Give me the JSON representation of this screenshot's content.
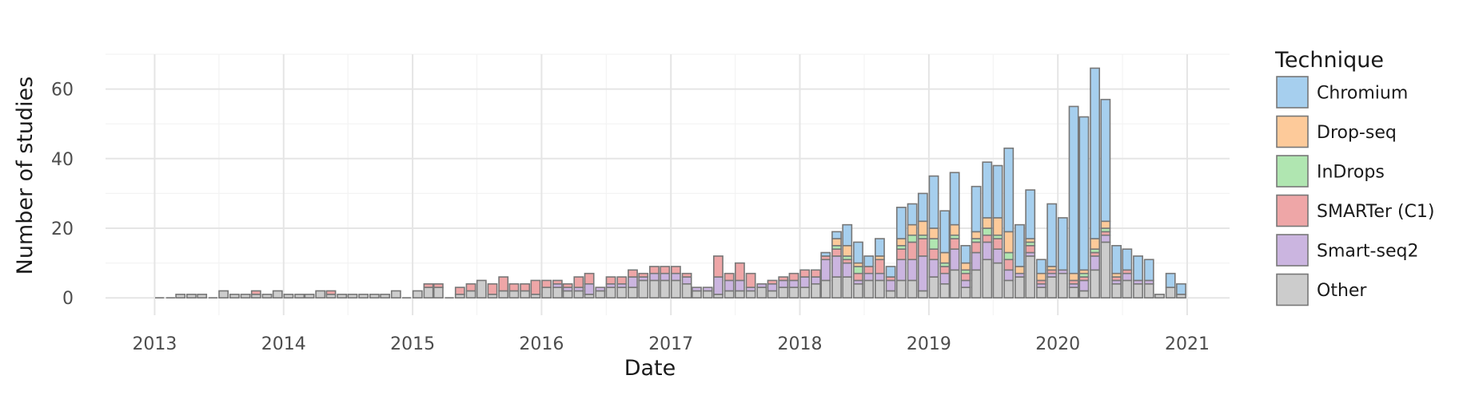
{
  "chart_data": {
    "type": "bar",
    "stacked": true,
    "xlabel": "Date",
    "ylabel": "Number of studies",
    "legend_title": "Technique",
    "legend_position": "right",
    "grid": true,
    "x_ticks": [
      "2013",
      "2014",
      "2015",
      "2016",
      "2017",
      "2018",
      "2019",
      "2020",
      "2021"
    ],
    "y_ticks": [
      "0",
      "20",
      "40",
      "60"
    ],
    "ylim": [
      -5,
      70
    ],
    "xlim": [
      "2012-08-15",
      "2021-05-01"
    ],
    "colors": {
      "Chromium": "#a6cfee",
      "Drop-seq": "#fdca9a",
      "InDrops": "#b0e6b1",
      "SMARTer (C1)": "#eea6a7",
      "Smart-seq2": "#cbb5e0",
      "Other": "#cccccc",
      "bar_edge": "#777777",
      "grid": "#e5e5e5",
      "grid_minor": "#f3f3f3"
    },
    "series_order": [
      "Other",
      "Smart-seq2",
      "SMARTer (C1)",
      "InDrops",
      "Drop-seq",
      "Chromium"
    ],
    "legend": [
      "Chromium",
      "Drop-seq",
      "InDrops",
      "SMARTer (C1)",
      "Smart-seq2",
      "Other"
    ],
    "months": [
      "2013-01",
      "2013-02",
      "2013-03",
      "2013-04",
      "2013-05",
      "2013-06",
      "2013-07",
      "2013-08",
      "2013-09",
      "2013-10",
      "2013-11",
      "2013-12",
      "2014-01",
      "2014-02",
      "2014-03",
      "2014-04",
      "2014-05",
      "2014-06",
      "2014-07",
      "2014-08",
      "2014-09",
      "2014-10",
      "2014-11",
      "2014-12",
      "2015-01",
      "2015-02",
      "2015-03",
      "2015-04",
      "2015-05",
      "2015-06",
      "2015-07",
      "2015-08",
      "2015-09",
      "2015-10",
      "2015-11",
      "2015-12",
      "2016-01",
      "2016-02",
      "2016-03",
      "2016-04",
      "2016-05",
      "2016-06",
      "2016-07",
      "2016-08",
      "2016-09",
      "2016-10",
      "2016-11",
      "2016-12",
      "2017-01",
      "2017-02",
      "2017-03",
      "2017-04",
      "2017-05",
      "2017-06",
      "2017-07",
      "2017-08",
      "2017-09",
      "2017-10",
      "2017-11",
      "2017-12",
      "2018-01",
      "2018-02",
      "2018-03",
      "2018-04",
      "2018-05",
      "2018-06",
      "2018-07",
      "2018-08",
      "2018-09",
      "2018-10",
      "2018-11",
      "2018-12",
      "2019-01",
      "2019-02",
      "2019-03",
      "2019-04",
      "2019-05",
      "2019-06",
      "2019-07",
      "2019-08",
      "2019-09",
      "2019-10",
      "2019-11",
      "2019-12",
      "2020-01",
      "2020-02",
      "2020-03",
      "2020-04",
      "2020-05",
      "2020-06",
      "2020-07",
      "2020-08",
      "2020-09",
      "2020-10",
      "2020-11",
      "2020-12"
    ],
    "series": [
      {
        "name": "Other",
        "values": [
          0,
          0,
          1,
          1,
          1,
          0,
          2,
          1,
          1,
          1,
          1,
          2,
          1,
          1,
          1,
          2,
          1,
          1,
          1,
          1,
          1,
          1,
          2,
          0,
          2,
          3,
          3,
          0,
          1,
          2,
          5,
          1,
          2,
          2,
          2,
          1,
          3,
          3,
          2,
          2,
          1,
          2,
          3,
          3,
          3,
          5,
          5,
          5,
          5,
          4,
          2,
          2,
          1,
          2,
          2,
          2,
          3,
          2,
          3,
          3,
          3,
          4,
          5,
          6,
          6,
          4,
          5,
          5,
          2,
          5,
          5,
          2,
          6,
          4,
          8,
          3,
          8,
          11,
          10,
          5,
          6,
          12,
          3,
          6,
          7,
          3,
          2,
          8,
          16,
          4,
          5,
          4,
          4,
          1,
          3,
          1
        ]
      },
      {
        "name": "Smart-seq2",
        "values": [
          0,
          0,
          0,
          0,
          0,
          0,
          0,
          0,
          0,
          0,
          0,
          0,
          0,
          0,
          0,
          0,
          0,
          0,
          0,
          0,
          0,
          0,
          0,
          0,
          0,
          0,
          0,
          0,
          0,
          0,
          0,
          0,
          0,
          0,
          0,
          0,
          0,
          1,
          1,
          1,
          3,
          1,
          1,
          1,
          3,
          1,
          2,
          2,
          2,
          2,
          1,
          1,
          5,
          3,
          3,
          1,
          1,
          2,
          2,
          2,
          3,
          2,
          6,
          6,
          4,
          1,
          2,
          2,
          3,
          6,
          6,
          10,
          5,
          3,
          6,
          2,
          5,
          5,
          4,
          3,
          1,
          1,
          1,
          1,
          1,
          1,
          3,
          4,
          2,
          1,
          2,
          1,
          1,
          0,
          0,
          0
        ]
      },
      {
        "name": "SMARTer (C1)",
        "values": [
          0,
          0,
          0,
          0,
          0,
          0,
          0,
          0,
          0,
          1,
          0,
          0,
          0,
          0,
          0,
          0,
          1,
          0,
          0,
          0,
          0,
          0,
          0,
          0,
          0,
          1,
          1,
          0,
          2,
          2,
          0,
          3,
          4,
          2,
          2,
          4,
          2,
          1,
          1,
          3,
          3,
          0,
          2,
          2,
          2,
          1,
          2,
          2,
          2,
          1,
          0,
          0,
          6,
          2,
          5,
          4,
          0,
          1,
          1,
          2,
          2,
          2,
          1,
          2,
          1,
          2,
          2,
          4,
          1,
          3,
          5,
          5,
          3,
          2,
          3,
          2,
          3,
          2,
          3,
          3,
          0,
          2,
          1,
          1,
          0,
          1,
          1,
          1,
          1,
          1,
          1,
          0,
          0,
          0,
          0,
          0
        ]
      },
      {
        "name": "InDrops",
        "values": [
          0,
          0,
          0,
          0,
          0,
          0,
          0,
          0,
          0,
          0,
          0,
          0,
          0,
          0,
          0,
          0,
          0,
          0,
          0,
          0,
          0,
          0,
          0,
          0,
          0,
          0,
          0,
          0,
          0,
          0,
          0,
          0,
          0,
          0,
          0,
          0,
          0,
          0,
          0,
          0,
          0,
          0,
          0,
          0,
          0,
          0,
          0,
          0,
          0,
          0,
          0,
          0,
          0,
          0,
          0,
          0,
          0,
          0,
          0,
          0,
          0,
          0,
          0,
          1,
          1,
          2,
          0,
          0,
          0,
          1,
          2,
          1,
          3,
          1,
          1,
          1,
          1,
          2,
          1,
          2,
          0,
          1,
          0,
          0,
          0,
          0,
          1,
          1,
          1,
          0,
          0,
          0,
          0,
          0,
          0,
          0
        ]
      },
      {
        "name": "Drop-seq",
        "values": [
          0,
          0,
          0,
          0,
          0,
          0,
          0,
          0,
          0,
          0,
          0,
          0,
          0,
          0,
          0,
          0,
          0,
          0,
          0,
          0,
          0,
          0,
          0,
          0,
          0,
          0,
          0,
          0,
          0,
          0,
          0,
          0,
          0,
          0,
          0,
          0,
          0,
          0,
          0,
          0,
          0,
          0,
          0,
          0,
          0,
          0,
          0,
          0,
          0,
          0,
          0,
          0,
          0,
          0,
          0,
          0,
          0,
          0,
          0,
          0,
          0,
          0,
          0,
          2,
          3,
          1,
          0,
          1,
          0,
          2,
          3,
          4,
          3,
          3,
          3,
          2,
          2,
          3,
          5,
          6,
          2,
          1,
          2,
          1,
          0,
          2,
          1,
          3,
          2,
          1,
          0,
          0,
          0,
          0,
          0,
          0
        ]
      },
      {
        "name": "Chromium",
        "values": [
          0,
          0,
          0,
          0,
          0,
          0,
          0,
          0,
          0,
          0,
          0,
          0,
          0,
          0,
          0,
          0,
          0,
          0,
          0,
          0,
          0,
          0,
          0,
          0,
          0,
          0,
          0,
          0,
          0,
          0,
          0,
          0,
          0,
          0,
          0,
          0,
          0,
          0,
          0,
          0,
          0,
          0,
          0,
          0,
          0,
          0,
          0,
          0,
          0,
          0,
          0,
          0,
          0,
          0,
          0,
          0,
          0,
          0,
          0,
          0,
          0,
          0,
          1,
          2,
          6,
          6,
          3,
          5,
          3,
          9,
          6,
          8,
          15,
          12,
          15,
          5,
          13,
          16,
          15,
          24,
          12,
          14,
          4,
          18,
          15,
          48,
          44,
          49,
          35,
          8,
          6,
          7,
          6,
          0,
          4,
          3
        ]
      }
    ]
  }
}
